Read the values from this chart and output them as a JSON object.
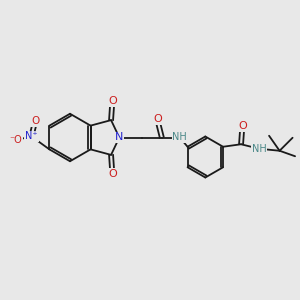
{
  "background_color": "#e8e8e8",
  "bond_color": "#1a1a1a",
  "N_color": "#2020cc",
  "O_color": "#cc2020",
  "H_color": "#4a8888",
  "figsize": [
    3.0,
    3.0
  ],
  "dpi": 100,
  "xlim": [
    0,
    12
  ],
  "ylim": [
    0,
    12
  ]
}
